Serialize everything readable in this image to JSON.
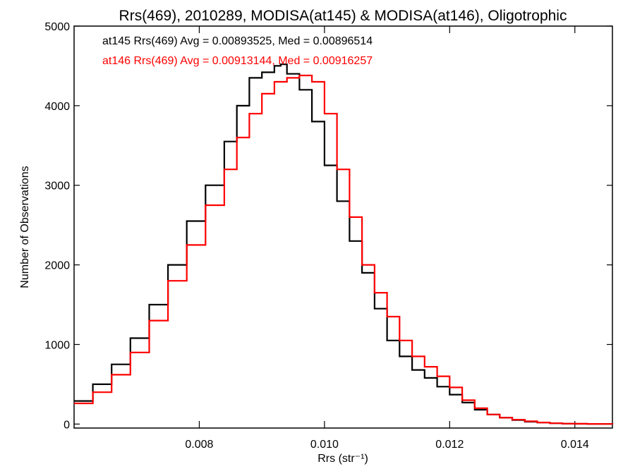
{
  "chart_data": {
    "type": "line",
    "title": "Rrs(469), 2010289, MODISA(at145) & MODISA(at146), Oligotrophic",
    "xlabel": "Rrs (str⁻¹)",
    "ylabel": "Number of Observations",
    "xlim": [
      0.006,
      0.0146
    ],
    "ylim": [
      -50,
      5000
    ],
    "x_ticks": [
      0.008,
      0.01,
      0.012,
      0.014
    ],
    "x_tick_labels": [
      "0.008",
      "0.010",
      "0.012",
      "0.014"
    ],
    "y_ticks": [
      0,
      1000,
      2000,
      3000,
      4000,
      5000
    ],
    "y_tick_labels": [
      "0",
      "1000",
      "2000",
      "3000",
      "4000",
      "5000"
    ],
    "grid": false,
    "legend_placement": "top-left",
    "series": [
      {
        "name": "at145",
        "label": "at145 Rrs(469) Avg = 0.00893525, Med = 0.00896514",
        "color": "#000000",
        "x": [
          0.006,
          0.0063,
          0.0066,
          0.0069,
          0.0072,
          0.0075,
          0.0078,
          0.0081,
          0.0084,
          0.0086,
          0.0088,
          0.009,
          0.0092,
          0.0093,
          0.0094,
          0.0096,
          0.0098,
          0.01,
          0.0102,
          0.0104,
          0.0106,
          0.0108,
          0.011,
          0.0112,
          0.0114,
          0.0116,
          0.0118,
          0.012,
          0.0122,
          0.0124,
          0.0126,
          0.0128,
          0.013,
          0.0132,
          0.0134,
          0.0136,
          0.0138,
          0.014,
          0.0142,
          0.0144,
          0.0146
        ],
        "y": [
          290,
          500,
          750,
          1080,
          1500,
          2000,
          2550,
          3000,
          3550,
          4000,
          4350,
          4420,
          4500,
          4520,
          4400,
          4200,
          3800,
          3250,
          2800,
          2300,
          1900,
          1450,
          1050,
          850,
          680,
          580,
          470,
          370,
          270,
          180,
          120,
          80,
          50,
          30,
          20,
          10,
          5,
          3,
          2,
          1,
          0
        ]
      },
      {
        "name": "at146",
        "label": "at146 Rrs(469) Avg = 0.00913144, Med = 0.00916257",
        "color": "#ff0000",
        "x": [
          0.006,
          0.0063,
          0.0066,
          0.0069,
          0.0072,
          0.0075,
          0.0078,
          0.0081,
          0.0084,
          0.0086,
          0.0088,
          0.009,
          0.0092,
          0.0094,
          0.0096,
          0.0098,
          0.01,
          0.0102,
          0.0104,
          0.0106,
          0.0108,
          0.011,
          0.0112,
          0.0114,
          0.0116,
          0.0118,
          0.012,
          0.0122,
          0.0124,
          0.0126,
          0.0128,
          0.013,
          0.0132,
          0.0134,
          0.0136,
          0.0138,
          0.014,
          0.0142,
          0.0144,
          0.0146
        ],
        "y": [
          260,
          400,
          620,
          900,
          1300,
          1800,
          2250,
          2750,
          3200,
          3600,
          3900,
          4150,
          4300,
          4350,
          4380,
          4300,
          3900,
          3200,
          2600,
          2000,
          1650,
          1350,
          1050,
          850,
          720,
          600,
          460,
          300,
          200,
          120,
          80,
          55,
          35,
          20,
          10,
          6,
          4,
          2,
          1,
          0
        ]
      }
    ]
  }
}
